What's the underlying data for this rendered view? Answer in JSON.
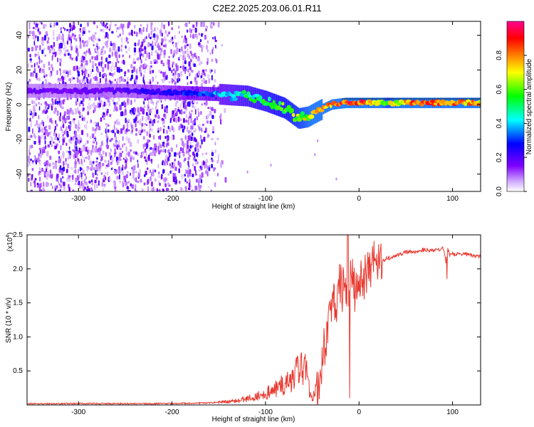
{
  "title": "C2E2.2025.203.06.01.R11",
  "chart_data": [
    {
      "type": "heatmap",
      "xlabel": "Height of straight line (km)",
      "ylabel": "Frequency (Hz)",
      "xlim": [
        -355,
        130
      ],
      "ylim": [
        -50,
        48
      ],
      "x_ticks": [
        "-300",
        "-200",
        "-100",
        "0",
        "100"
      ],
      "y_ticks": [
        "-40",
        "-20",
        "0",
        "20",
        "40"
      ],
      "colorbar": {
        "label": "Normalized spectral amplitude",
        "range": [
          0,
          1
        ],
        "ticks": [
          "0.0",
          "0.2",
          "0.4",
          "0.6",
          "0.8"
        ],
        "colors": [
          "#ffffff",
          "#7f00ff",
          "#0000ff",
          "#00ffff",
          "#00ff00",
          "#ffff00",
          "#ff8000",
          "#ff0000",
          "#ff0090"
        ]
      },
      "ridge": {
        "x": [
          -355,
          -300,
          -250,
          -200,
          -150,
          -120,
          -100,
          -80,
          -65,
          -55,
          -45,
          -30,
          -15,
          0,
          30,
          60,
          100,
          130
        ],
        "y": [
          8,
          8,
          8,
          7,
          6,
          5,
          2,
          -2,
          -8,
          -7,
          -4,
          0,
          1,
          1,
          1,
          1,
          1,
          1
        ],
        "amplitude": [
          0.15,
          0.15,
          0.18,
          0.25,
          0.35,
          0.45,
          0.5,
          0.55,
          0.6,
          0.65,
          0.7,
          0.8,
          0.85,
          0.9,
          0.6,
          0.85,
          0.8,
          0.75
        ]
      }
    },
    {
      "type": "line",
      "xlabel": "Height of straight line (km)",
      "ylabel": "SNR (10 * v/v)",
      "multiplier": "(x10",
      "multiplier_exp": "4",
      "xlim": [
        -355,
        130
      ],
      "ylim": [
        0,
        2.5
      ],
      "x_ticks": [
        "-300",
        "-200",
        "-100",
        "0",
        "100"
      ],
      "y_ticks": [
        "0.5",
        "1.0",
        "1.5",
        "2.0",
        "2.5"
      ],
      "color": "#e8382e",
      "series": [
        {
          "x": [
            -355,
            -300,
            -250,
            -200,
            -160,
            -130,
            -110,
            -95,
            -80,
            -70,
            -62,
            -58,
            -54,
            -50,
            -45,
            -40,
            -36,
            -32,
            -28,
            -25,
            -22,
            -20,
            -18,
            -15,
            -12,
            -10,
            -8,
            -5,
            0,
            5,
            10,
            20,
            30,
            40,
            50,
            60,
            70,
            80,
            90,
            93,
            95,
            97,
            100,
            110,
            120,
            130
          ],
          "y": [
            0.02,
            0.02,
            0.02,
            0.02,
            0.03,
            0.06,
            0.12,
            0.2,
            0.3,
            0.45,
            0.5,
            0.55,
            0.3,
            0.1,
            0.25,
            0.6,
            0.9,
            1.2,
            1.5,
            1.45,
            1.7,
            1.8,
            1.6,
            2.0,
            1.2,
            1.7,
            1.85,
            1.7,
            1.8,
            1.85,
            2.05,
            2.1,
            2.15,
            2.2,
            2.25,
            2.25,
            2.28,
            2.27,
            2.3,
            2.1,
            2.3,
            2.2,
            2.22,
            2.22,
            2.2,
            2.18
          ]
        }
      ]
    }
  ]
}
